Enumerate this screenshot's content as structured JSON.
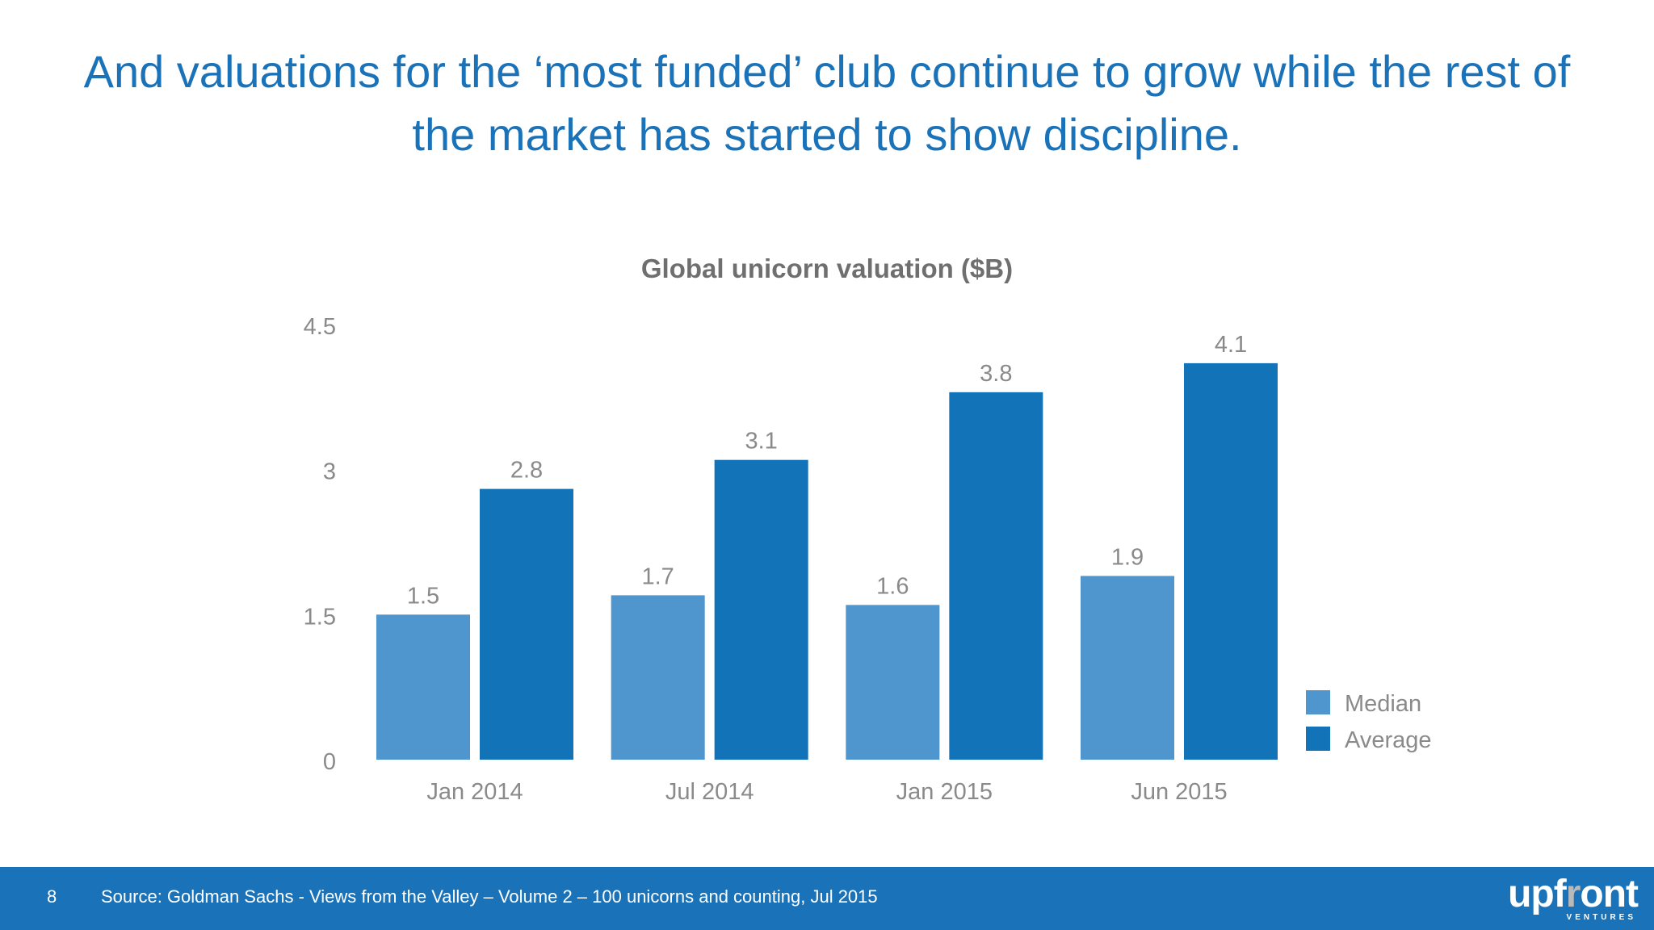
{
  "headline": {
    "line1": "And valuations for the ‘most funded’ club continue to grow while the rest of",
    "line2": "the market has started to show discipline."
  },
  "chart_data": {
    "type": "bar",
    "title": "Global unicorn valuation ($B)",
    "xlabel": "",
    "ylabel": "",
    "categories": [
      "Jan 2014",
      "Jul 2014",
      "Jan 2015",
      "Jun 2015"
    ],
    "series": [
      {
        "name": "Median",
        "values": [
          1.5,
          1.7,
          1.6,
          1.9
        ],
        "color": "#4f96cf"
      },
      {
        "name": "Average",
        "values": [
          2.8,
          3.1,
          3.8,
          4.1
        ],
        "color": "#1273b8"
      }
    ],
    "ylim": [
      0,
      4.5
    ],
    "yticks": [
      "0",
      "1.5",
      "3",
      "4.5"
    ],
    "grid": false,
    "legend": "right"
  },
  "footer": {
    "page_number": "8",
    "source": "Source: Goldman Sachs - Views from the Valley – Volume 2 – 100 unicorns and counting, Jul 2015",
    "logo_text": "upfront",
    "logo_subtext": "VENTURES"
  }
}
